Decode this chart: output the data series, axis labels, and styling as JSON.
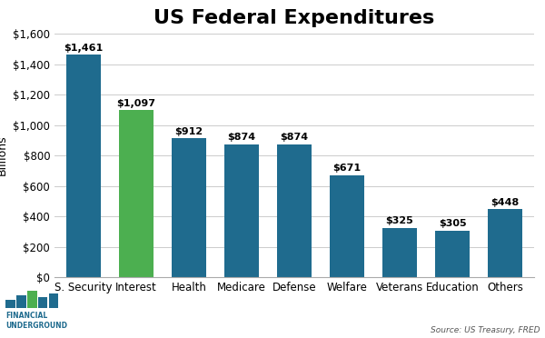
{
  "title": "US Federal Expenditures",
  "categories": [
    "S. Security",
    "Interest",
    "Health",
    "Medicare",
    "Defense",
    "Welfare",
    "Veterans",
    "Education",
    "Others"
  ],
  "values": [
    1461,
    1097,
    912,
    874,
    874,
    671,
    325,
    305,
    448
  ],
  "bar_colors": [
    "#1f6b8e",
    "#4caf50",
    "#1f6b8e",
    "#1f6b8e",
    "#1f6b8e",
    "#1f6b8e",
    "#1f6b8e",
    "#1f6b8e",
    "#1f6b8e"
  ],
  "ylabel": "Billions",
  "ylim": [
    0,
    1600
  ],
  "yticks": [
    0,
    200,
    400,
    600,
    800,
    1000,
    1200,
    1400,
    1600
  ],
  "source_text": "Source: US Treasury, FRED",
  "title_fontsize": 16,
  "axis_label_fontsize": 9,
  "tick_fontsize": 8.5,
  "value_label_fontsize": 8,
  "background_color": "#ffffff",
  "grid_color": "#cccccc",
  "logo_bar_colors": [
    "#1f6b8e",
    "#1f6b8e",
    "#4caf50",
    "#1f6b8e",
    "#1f6b8e"
  ],
  "logo_text_color": "#1f6b8e",
  "logo_text": "FINANCIAL\nUNDERGROUND"
}
